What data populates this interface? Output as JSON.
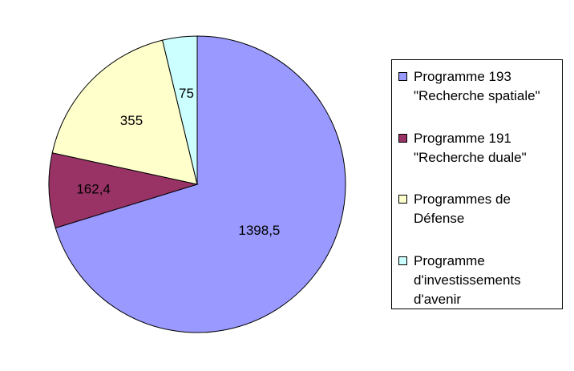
{
  "chart_data": {
    "type": "pie",
    "slices": [
      {
        "label": "Programme 193 \"Recherche spatiale\"",
        "value": 1398.5,
        "value_label": "1398,5",
        "color": "#9999ff"
      },
      {
        "label": "Programme 191 \"Recherche duale\"",
        "value": 162.4,
        "value_label": "162,4",
        "color": "#993366"
      },
      {
        "label": "Programmes de Défense",
        "value": 355,
        "value_label": "355",
        "color": "#ffffcc"
      },
      {
        "label": "Programme d'investissements d'avenir",
        "value": 75,
        "value_label": "75",
        "color": "#ccffff"
      }
    ],
    "legend_position": "right",
    "start": "12 o'clock",
    "direction": "clockwise"
  },
  "legend": {
    "items": [
      {
        "text": "Programme 193\n\"Recherche spatiale\"",
        "color": "#9999ff"
      },
      {
        "text": "Programme 191\n\"Recherche duale\"",
        "color": "#993366"
      },
      {
        "text": "Programmes de\nDéfense",
        "color": "#ffffcc"
      },
      {
        "text": "Programme\nd'investissements\nd'avenir",
        "color": "#ccffff"
      }
    ]
  }
}
